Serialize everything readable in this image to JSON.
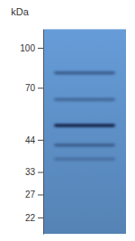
{
  "chart_data": {
    "type": "blot",
    "y_label": "kDa",
    "log": "y",
    "tick_labels": "y",
    "ylim": [
      19,
      118
    ],
    "yticks": [
      100,
      70,
      44,
      33,
      27,
      22
    ],
    "categories": [
      null
    ],
    "color": "#5d8fc6",
    "bands": [
      80,
      63,
      50,
      42,
      37
    ],
    "intensity": [
      0.45,
      0.35,
      0.9,
      0.4,
      0.25
    ]
  }
}
